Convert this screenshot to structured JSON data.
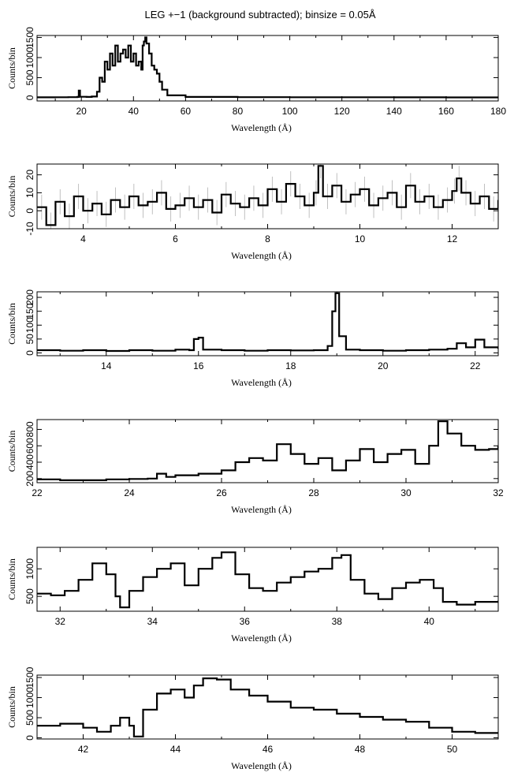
{
  "figure": {
    "title": "LEG +−1 (background subtracted); binsize = 0.05Å"
  },
  "chart_data": [
    {
      "type": "line",
      "xlabel": "Wavelength (Å)",
      "ylabel": "Counts/bin",
      "xlim": [
        3,
        180
      ],
      "ylim": [
        -80,
        1550
      ],
      "xticks": [
        20,
        40,
        60,
        80,
        100,
        120,
        140,
        160,
        180
      ],
      "yticks": [
        0,
        500,
        1000,
        1500
      ],
      "error_bars": false,
      "x": [
        3,
        10,
        15,
        18.5,
        19,
        19.5,
        22,
        24,
        26,
        27,
        28,
        29,
        30,
        31,
        32,
        33,
        34,
        35,
        36,
        37,
        38,
        39,
        40,
        41,
        42,
        43,
        43.5,
        44,
        44.5,
        45,
        46,
        47,
        48,
        49,
        50,
        51,
        53,
        60,
        80,
        100,
        120,
        140,
        160,
        180
      ],
      "y": [
        10,
        12,
        15,
        20,
        180,
        25,
        20,
        30,
        150,
        500,
        400,
        900,
        700,
        1100,
        800,
        1300,
        900,
        1100,
        1200,
        1000,
        1300,
        900,
        1100,
        800,
        900,
        700,
        1300,
        1400,
        1500,
        1350,
        1100,
        800,
        700,
        600,
        400,
        200,
        60,
        20,
        15,
        12,
        12,
        10,
        8,
        8
      ]
    },
    {
      "type": "line",
      "xlabel": "Wavelength (Å)",
      "ylabel": "Counts/bin",
      "xlim": [
        3,
        13
      ],
      "ylim": [
        -10,
        26
      ],
      "xticks": [
        4,
        6,
        8,
        10,
        12
      ],
      "yticks": [
        -10,
        0,
        10,
        20
      ],
      "error_bars": true,
      "x": [
        3,
        3.2,
        3.4,
        3.6,
        3.8,
        4,
        4.2,
        4.4,
        4.6,
        4.8,
        5,
        5.2,
        5.4,
        5.6,
        5.8,
        6,
        6.2,
        6.4,
        6.6,
        6.8,
        7,
        7.2,
        7.4,
        7.6,
        7.8,
        8,
        8.2,
        8.4,
        8.6,
        8.8,
        9,
        9.1,
        9.2,
        9.4,
        9.6,
        9.8,
        10,
        10.2,
        10.4,
        10.6,
        10.8,
        11,
        11.2,
        11.4,
        11.6,
        11.8,
        12,
        12.1,
        12.2,
        12.4,
        12.6,
        12.8,
        13
      ],
      "y": [
        2,
        -8,
        5,
        -3,
        8,
        0,
        4,
        -2,
        6,
        2,
        8,
        3,
        5,
        10,
        1,
        3,
        7,
        2,
        6,
        -1,
        9,
        4,
        2,
        7,
        3,
        12,
        5,
        15,
        8,
        3,
        10,
        25,
        8,
        14,
        5,
        9,
        12,
        3,
        7,
        10,
        2,
        14,
        5,
        8,
        2,
        6,
        11,
        18,
        10,
        4,
        8,
        1,
        6
      ]
    },
    {
      "type": "line",
      "xlabel": "Wavelength (Å)",
      "ylabel": "Counts/bin",
      "xlim": [
        12.5,
        22.5
      ],
      "ylim": [
        -10,
        220
      ],
      "xticks": [
        14,
        16,
        18,
        20,
        22
      ],
      "yticks": [
        0,
        50,
        100,
        150,
        200
      ],
      "error_bars": false,
      "x": [
        12.5,
        13,
        13.5,
        14,
        14.5,
        15,
        15.5,
        15.8,
        15.9,
        16,
        16.1,
        16.5,
        17,
        17.5,
        18,
        18.5,
        18.8,
        18.9,
        18.97,
        19.05,
        19.2,
        19.5,
        20,
        20.5,
        21,
        21.4,
        21.6,
        21.8,
        22,
        22.2,
        22.5
      ],
      "y": [
        10,
        8,
        10,
        7,
        10,
        8,
        12,
        10,
        50,
        55,
        12,
        10,
        8,
        10,
        9,
        10,
        25,
        150,
        215,
        60,
        12,
        10,
        8,
        10,
        12,
        15,
        35,
        20,
        48,
        20,
        15
      ]
    },
    {
      "type": "line",
      "xlabel": "Wavelength (Å)",
      "ylabel": "Counts/bin",
      "xlim": [
        22,
        32
      ],
      "ylim": [
        150,
        920
      ],
      "xticks": [
        22,
        24,
        26,
        28,
        30,
        32
      ],
      "yticks": [
        200,
        400,
        600,
        800
      ],
      "error_bars": false,
      "x": [
        22,
        22.5,
        23,
        23.5,
        24,
        24.4,
        24.6,
        24.8,
        25,
        25.5,
        26,
        26.3,
        26.6,
        26.9,
        27.2,
        27.5,
        27.8,
        28.1,
        28.4,
        28.7,
        29,
        29.3,
        29.6,
        29.9,
        30.2,
        30.5,
        30.7,
        30.9,
        31.2,
        31.5,
        31.8,
        32
      ],
      "y": [
        190,
        180,
        180,
        190,
        195,
        200,
        260,
        220,
        240,
        260,
        300,
        400,
        450,
        420,
        620,
        500,
        380,
        450,
        300,
        420,
        560,
        400,
        500,
        550,
        380,
        600,
        900,
        750,
        600,
        550,
        560,
        600
      ]
    },
    {
      "type": "line",
      "xlabel": "Wavelength (Å)",
      "ylabel": "Counts/bin",
      "xlim": [
        31.5,
        41.5
      ],
      "ylim": [
        230,
        1390
      ],
      "xticks": [
        32,
        34,
        36,
        38,
        40
      ],
      "yticks": [
        500,
        1000
      ],
      "error_bars": false,
      "x": [
        31.5,
        31.8,
        32.1,
        32.4,
        32.7,
        33,
        33.2,
        33.3,
        33.5,
        33.8,
        34.1,
        34.4,
        34.7,
        35,
        35.3,
        35.5,
        35.8,
        36.1,
        36.4,
        36.7,
        37,
        37.3,
        37.6,
        37.9,
        38.1,
        38.3,
        38.6,
        38.9,
        39.2,
        39.5,
        39.8,
        40.1,
        40.3,
        40.6,
        41,
        41.5
      ],
      "y": [
        550,
        520,
        600,
        800,
        1100,
        900,
        500,
        300,
        600,
        850,
        1000,
        1100,
        700,
        1000,
        1200,
        1300,
        900,
        650,
        600,
        750,
        850,
        950,
        1000,
        1200,
        1250,
        800,
        550,
        450,
        650,
        750,
        800,
        650,
        400,
        350,
        400,
        420
      ]
    },
    {
      "type": "line",
      "xlabel": "Wavelength (Å)",
      "ylabel": "Counts/bin",
      "xlim": [
        41,
        51
      ],
      "ylim": [
        -30,
        1560
      ],
      "xticks": [
        42,
        44,
        46,
        48,
        50
      ],
      "yticks": [
        0,
        500,
        1000,
        1500
      ],
      "error_bars": false,
      "x": [
        41,
        41.5,
        42,
        42.3,
        42.6,
        42.8,
        43,
        43.1,
        43.3,
        43.6,
        43.9,
        44.2,
        44.4,
        44.6,
        44.9,
        45.2,
        45.6,
        46,
        46.5,
        47,
        47.5,
        48,
        48.5,
        49,
        49.5,
        50,
        50.5,
        51
      ],
      "y": [
        300,
        350,
        250,
        150,
        300,
        500,
        300,
        30,
        700,
        1100,
        1200,
        1000,
        1300,
        1480,
        1450,
        1200,
        1050,
        900,
        750,
        700,
        600,
        520,
        450,
        400,
        250,
        150,
        120,
        100
      ]
    }
  ]
}
